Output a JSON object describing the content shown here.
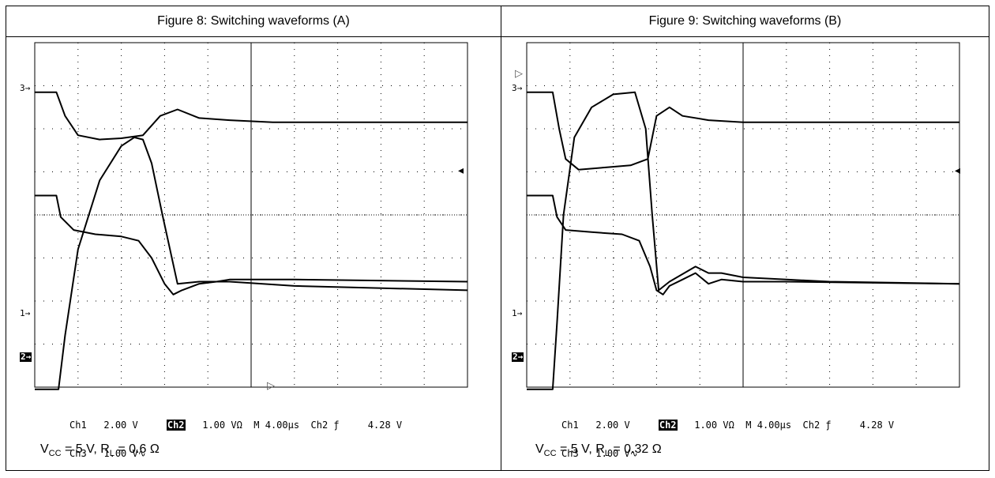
{
  "panels": [
    {
      "title": "Figure 8: Switching waveforms (A)",
      "cond": {
        "v": "V",
        "v_sub": "CC",
        "v_val": " = 5 V,  R",
        "r_sub": "L",
        "r_val": " = 0.6 Ω"
      },
      "readout": {
        "ch1": "Ch1",
        "ch1_scale": "2.00 V",
        "ch2": "Ch2",
        "ch2_scale": "1.00 VΩ",
        "timebase": "M 4.00µs",
        "trig": "Ch2 ƒ",
        "trig_level": "4.28 V",
        "ch3": "Ch3",
        "ch3_scale": "1.00 V∿"
      },
      "markers": {
        "ch3": "3→",
        "ch1": "1→",
        "ch2": "2→"
      }
    },
    {
      "title": "Figure 9: Switching waveforms (B)",
      "cond": {
        "v": "V",
        "v_sub": "CC",
        "v_val": " = 5 V,  R",
        "r_sub": "L",
        "r_val": " = 0.32 Ω"
      },
      "readout": {
        "ch1": "Ch1",
        "ch1_scale": "2.00 V",
        "ch2": "Ch2",
        "ch2_scale": "1.00 VΩ",
        "timebase": "M 4.00µs",
        "trig": "Ch2 ƒ",
        "trig_level": "4.28 V",
        "ch3": "Ch3",
        "ch3_scale": "1.00 V∿"
      },
      "markers": {
        "ch3": "3→",
        "ch1": "1→",
        "ch2": "2→"
      }
    }
  ],
  "chart_data": [
    {
      "type": "line",
      "title": "Figure 8: Switching waveforms (A)",
      "x_unit": "div",
      "y_unit": "div",
      "xlim": [
        0,
        10
      ],
      "ylim": [
        -4,
        4
      ],
      "grid": true,
      "series": [
        {
          "x": [
            0,
            0.5,
            0.7,
            1.0,
            1.5,
            2.0,
            2.5,
            2.9,
            3.3,
            3.8,
            4.5,
            5.5,
            7,
            10
          ],
          "y": [
            2.85,
            2.85,
            2.3,
            1.85,
            1.75,
            1.78,
            1.85,
            2.3,
            2.45,
            2.25,
            2.2,
            2.15,
            2.15,
            2.15
          ]
        },
        {
          "x": [
            0,
            0.55,
            0.7,
            1.0,
            1.5,
            2.0,
            2.3,
            2.5,
            2.7,
            2.95,
            3.3,
            3.8,
            4.5,
            6,
            10
          ],
          "y": [
            -4.05,
            -4.05,
            -2.8,
            -0.8,
            0.8,
            1.6,
            1.8,
            1.75,
            1.2,
            0,
            -1.6,
            -1.55,
            -1.55,
            -1.65,
            -1.75
          ]
        },
        {
          "x": [
            0,
            0.5,
            0.6,
            0.9,
            1.4,
            2.0,
            2.4,
            2.7,
            3.0,
            3.2,
            3.4,
            3.8,
            4.2,
            4.5,
            6,
            10
          ],
          "y": [
            0.45,
            0.45,
            -0.05,
            -0.35,
            -0.45,
            -0.5,
            -0.6,
            -1.0,
            -1.6,
            -1.85,
            -1.75,
            -1.6,
            -1.55,
            -1.5,
            -1.5,
            -1.55
          ]
        }
      ]
    },
    {
      "type": "line",
      "title": "Figure 9: Switching waveforms (B)",
      "x_unit": "div",
      "y_unit": "div",
      "xlim": [
        0,
        10
      ],
      "ylim": [
        -4,
        4
      ],
      "grid": true,
      "series": [
        {
          "x": [
            0,
            0.6,
            0.75,
            0.9,
            1.2,
            1.8,
            2.4,
            2.8,
            3.0,
            3.3,
            3.6,
            4.2,
            5,
            6,
            10
          ],
          "y": [
            2.85,
            2.85,
            2.0,
            1.3,
            1.05,
            1.1,
            1.15,
            1.3,
            2.3,
            2.5,
            2.3,
            2.2,
            2.15,
            2.15,
            2.15
          ]
        },
        {
          "x": [
            0,
            0.6,
            0.7,
            0.85,
            1.1,
            1.5,
            2.0,
            2.5,
            2.75,
            2.9,
            3.05,
            3.3,
            3.9,
            4.2,
            4.5,
            5,
            6,
            7,
            10
          ],
          "y": [
            -4.05,
            -4.05,
            -2.5,
            0.0,
            1.8,
            2.5,
            2.8,
            2.85,
            2.0,
            0.0,
            -1.75,
            -1.55,
            -1.2,
            -1.35,
            -1.35,
            -1.45,
            -1.5,
            -1.55,
            -1.6
          ]
        },
        {
          "x": [
            0,
            0.6,
            0.7,
            0.9,
            1.5,
            2.2,
            2.6,
            2.85,
            3.0,
            3.15,
            3.3,
            3.6,
            3.9,
            4.2,
            4.5,
            5,
            6,
            10
          ],
          "y": [
            0.45,
            0.45,
            -0.05,
            -0.35,
            -0.4,
            -0.45,
            -0.6,
            -1.2,
            -1.75,
            -1.85,
            -1.65,
            -1.5,
            -1.35,
            -1.6,
            -1.5,
            -1.55,
            -1.55,
            -1.6
          ]
        }
      ]
    }
  ]
}
